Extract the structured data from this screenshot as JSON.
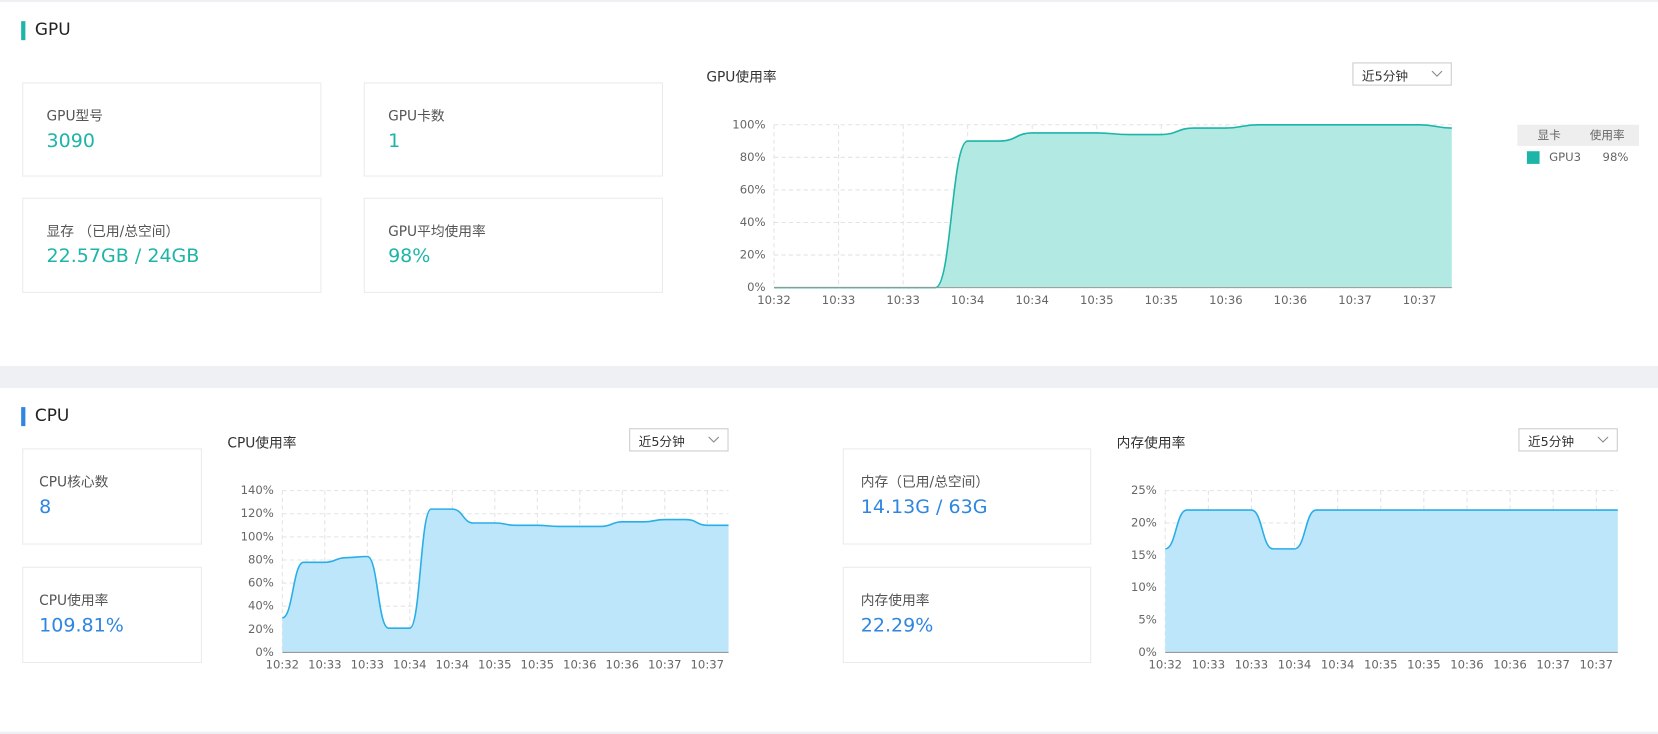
{
  "gpu": {
    "title": "GPU",
    "cards": [
      {
        "label": "GPU型号",
        "value": "3090"
      },
      {
        "label": "GPU卡数",
        "value": "1"
      },
      {
        "label": "显存 （已用/总空间）",
        "value": "22.57GB / 24GB"
      },
      {
        "label": "GPU平均使用率",
        "value": "98%"
      }
    ],
    "chart": {
      "type": "line",
      "title": "GPU使用率",
      "range": "近5分钟",
      "categories": [
        "10:32",
        null,
        "10:33",
        null,
        "10:33",
        null,
        "10:34",
        null,
        "10:34",
        null,
        "10:35",
        null,
        "10:35",
        null,
        "10:36",
        null,
        "10:36",
        null,
        "10:37",
        null,
        "10:37",
        null
      ],
      "series": [
        {
          "name": "GPU3",
          "color": "#1db5a8",
          "values": [
            0,
            0,
            0,
            0,
            0,
            0,
            90,
            90,
            95,
            95,
            95,
            94,
            94,
            98,
            98,
            100,
            100,
            100,
            100,
            100,
            100,
            98
          ]
        }
      ],
      "ylim": [
        0,
        100
      ],
      "yticks": [
        {
          "value": 0,
          "label": "0%"
        },
        {
          "value": 20,
          "label": "20%"
        },
        {
          "value": 40,
          "label": "40%"
        },
        {
          "value": 60,
          "label": "60%"
        },
        {
          "value": 80,
          "label": "80%"
        },
        {
          "value": 100,
          "label": "100%"
        }
      ],
      "grid": true,
      "legend": {
        "header": [
          "显卡",
          "使用率"
        ],
        "value": "98%"
      }
    }
  },
  "cpu": {
    "title": "CPU",
    "cards": [
      {
        "label": "CPU核心数",
        "value": "8"
      },
      {
        "label": "CPU使用率",
        "value": "109.81%"
      }
    ],
    "chart": {
      "type": "line",
      "title": "CPU使用率",
      "range": "近5分钟",
      "categories": [
        "10:32",
        null,
        "10:33",
        null,
        "10:33",
        null,
        "10:34",
        null,
        "10:34",
        null,
        "10:35",
        null,
        "10:35",
        null,
        "10:36",
        null,
        "10:36",
        null,
        "10:37",
        null,
        "10:37",
        null
      ],
      "series": [
        {
          "name": "CPU",
          "color": "#29aee8",
          "values": [
            30,
            78,
            78,
            82,
            83,
            21,
            21,
            124,
            124,
            112,
            112,
            110,
            110,
            109,
            109,
            109,
            113,
            113,
            115,
            115,
            110,
            110
          ]
        }
      ],
      "ylim": [
        0,
        140
      ],
      "yticks": [
        {
          "value": 0,
          "label": "0%"
        },
        {
          "value": 20,
          "label": "20%"
        },
        {
          "value": 40,
          "label": "40%"
        },
        {
          "value": 60,
          "label": "60%"
        },
        {
          "value": 80,
          "label": "80%"
        },
        {
          "value": 100,
          "label": "100%"
        },
        {
          "value": 120,
          "label": "120%"
        },
        {
          "value": 140,
          "label": "140%"
        }
      ],
      "grid": true
    }
  },
  "memory": {
    "cards": [
      {
        "label": "内存（已用/总空间）",
        "value": "14.13G / 63G"
      },
      {
        "label": "内存使用率",
        "value": "22.29%"
      }
    ],
    "chart": {
      "type": "line",
      "title": "内存使用率",
      "range": "近5分钟",
      "categories": [
        "10:32",
        null,
        "10:33",
        null,
        "10:33",
        null,
        "10:34",
        null,
        "10:34",
        null,
        "10:35",
        null,
        "10:35",
        null,
        "10:36",
        null,
        "10:36",
        null,
        "10:37",
        null,
        "10:37",
        null
      ],
      "series": [
        {
          "name": "内存",
          "color": "#29aee8",
          "values": [
            16,
            22,
            22,
            22,
            22,
            16,
            16,
            22,
            22,
            22,
            22,
            22,
            22,
            22,
            22,
            22,
            22,
            22,
            22,
            22,
            22,
            22
          ]
        }
      ],
      "ylim": [
        0,
        25
      ],
      "yticks": [
        {
          "value": 0,
          "label": "0%"
        },
        {
          "value": 5,
          "label": "5%"
        },
        {
          "value": 10,
          "label": "10%"
        },
        {
          "value": 15,
          "label": "15%"
        },
        {
          "value": 20,
          "label": "20%"
        },
        {
          "value": 25,
          "label": "25%"
        }
      ],
      "grid": true
    }
  }
}
